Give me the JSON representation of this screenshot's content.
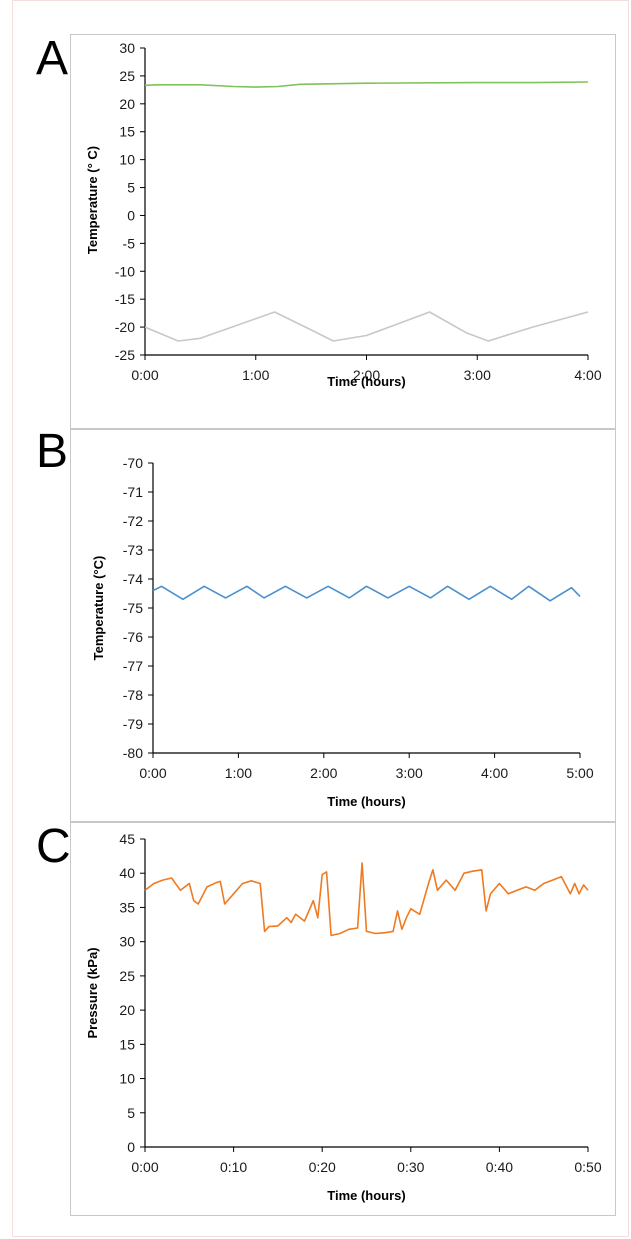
{
  "panels": [
    {
      "letter": "A"
    },
    {
      "letter": "B"
    },
    {
      "letter": "C"
    }
  ],
  "chart_data": [
    {
      "type": "line",
      "xlabel": "Time (hours)",
      "ylabel": "Temperature (° C)",
      "ylim": [
        -25,
        30
      ],
      "yticks": [
        30,
        25,
        20,
        15,
        10,
        5,
        0,
        -5,
        -10,
        -15,
        -20,
        -25
      ],
      "xlim": [
        0,
        4
      ],
      "xtick_labels": [
        "0:00",
        "1:00",
        "2:00",
        "3:00",
        "4:00"
      ],
      "grid": false,
      "series": [
        {
          "color": "#7fc25a",
          "x": [
            0,
            0.1,
            0.5,
            0.8,
            1.0,
            1.2,
            1.4,
            2.0,
            3.0,
            3.5,
            4.0
          ],
          "y": [
            23.3,
            23.4,
            23.4,
            23.1,
            23.0,
            23.1,
            23.5,
            23.7,
            23.8,
            23.8,
            23.9
          ]
        },
        {
          "color": "#c8c8c8",
          "x": [
            0,
            0.3,
            0.5,
            1.17,
            1.5,
            1.7,
            2.0,
            2.57,
            2.9,
            3.1,
            3.5,
            4.0
          ],
          "y": [
            -20.0,
            -22.5,
            -22.0,
            -17.3,
            -20.5,
            -22.5,
            -21.5,
            -17.3,
            -21.0,
            -22.5,
            -20.0,
            -17.3
          ]
        }
      ]
    },
    {
      "type": "line",
      "xlabel": "Time (hours)",
      "ylabel": "Temperature  (°C)",
      "ylim": [
        -80,
        -70
      ],
      "yticks": [
        -70,
        -71,
        -72,
        -73,
        -74,
        -75,
        -76,
        -77,
        -78,
        -79,
        -80
      ],
      "xlim": [
        0,
        5
      ],
      "xtick_labels": [
        "0:00",
        "1:00",
        "2:00",
        "3:00",
        "4:00",
        "5:00"
      ],
      "grid": false,
      "series": [
        {
          "color": "#4a90d0",
          "x": [
            0,
            0.1,
            0.35,
            0.6,
            0.85,
            1.1,
            1.3,
            1.55,
            1.8,
            2.05,
            2.3,
            2.5,
            2.75,
            3.0,
            3.25,
            3.45,
            3.7,
            3.95,
            4.2,
            4.4,
            4.65,
            4.9,
            5.0
          ],
          "y": [
            -74.4,
            -74.25,
            -74.7,
            -74.25,
            -74.65,
            -74.25,
            -74.65,
            -74.25,
            -74.65,
            -74.25,
            -74.65,
            -74.25,
            -74.65,
            -74.25,
            -74.65,
            -74.25,
            -74.7,
            -74.25,
            -74.7,
            -74.25,
            -74.75,
            -74.3,
            -74.6
          ]
        }
      ]
    },
    {
      "type": "line",
      "xlabel": "Time (hours)",
      "ylabel": "Pressure (kPa)",
      "ylim": [
        0,
        45
      ],
      "yticks": [
        45,
        40,
        35,
        30,
        25,
        20,
        15,
        10,
        5,
        0
      ],
      "xlim": [
        0,
        50
      ],
      "xtick_labels": [
        "0:00",
        "0:10",
        "0:20",
        "0:30",
        "0:40",
        "0:50"
      ],
      "grid": false,
      "series": [
        {
          "color": "#f07a20",
          "x": [
            0,
            1,
            2,
            3,
            4,
            5,
            5.5,
            6,
            7,
            8,
            8.5,
            9,
            10,
            11,
            12,
            13,
            13.5,
            14,
            15,
            16,
            16.5,
            17,
            18,
            18.5,
            19,
            19.5,
            20,
            20.5,
            21,
            22,
            23,
            24,
            24.5,
            25,
            26,
            27,
            28,
            28.5,
            29,
            29.5,
            30,
            31,
            32,
            32.5,
            33,
            34,
            35,
            36,
            37,
            38,
            38.5,
            39,
            40,
            41,
            42,
            43,
            44,
            45,
            46,
            47,
            48,
            48.5,
            49,
            49.5,
            50
          ],
          "y": [
            37.5,
            38.5,
            39,
            39.3,
            37.5,
            38.5,
            36,
            35.5,
            38,
            38.6,
            38.8,
            35.5,
            37,
            38.5,
            38.9,
            38.5,
            31.5,
            32.2,
            32.3,
            33.5,
            32.8,
            34,
            33,
            34.5,
            36,
            33.5,
            39.8,
            40.2,
            30.9,
            31.2,
            31.8,
            32,
            41.5,
            31.5,
            31.2,
            31.3,
            31.5,
            34.5,
            31.8,
            33.5,
            34.8,
            34,
            38.5,
            40.5,
            37.5,
            39,
            37.5,
            40,
            40.3,
            40.5,
            34.5,
            37,
            38.5,
            37,
            37.5,
            38,
            37.5,
            38.5,
            39,
            39.5,
            37,
            38.5,
            37,
            38.3,
            37.5
          ]
        }
      ]
    }
  ]
}
